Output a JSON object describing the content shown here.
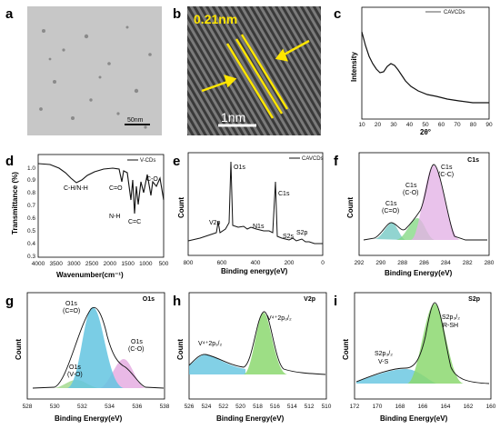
{
  "panels": {
    "a": {
      "letter": "a",
      "scale_bar": "50nm"
    },
    "b": {
      "letter": "b",
      "lattice": "0.21nm",
      "scale_bar": "1nm"
    },
    "c": {
      "letter": "c",
      "legend": "CAVCDs",
      "ylabel": "Intensity",
      "xlabel": "2θ°",
      "xticks": [
        "10",
        "20",
        "30",
        "40",
        "50",
        "60",
        "70",
        "80",
        "90"
      ]
    },
    "d": {
      "letter": "d",
      "legend": "V-CDs",
      "ylabel": "Transmittance (%)",
      "xlabel": "Wavenumber(cm⁻¹)",
      "xticks": [
        "4000",
        "3500",
        "3000",
        "2500",
        "2000",
        "1500",
        "1000",
        "500"
      ],
      "yticks": [
        "1.0",
        "0.9",
        "0.8",
        "0.7",
        "0.6",
        "0.5",
        "0.4",
        "0.3"
      ],
      "annotations": [
        "C-H/N-H",
        "C=O",
        "N-H",
        "C=C",
        "C-O"
      ]
    },
    "e": {
      "letter": "e",
      "legend": "CAVCDs",
      "ylabel": "Count",
      "xlabel": "Binding energy(eV)",
      "xticks": [
        "800",
        "600",
        "400",
        "200",
        "0"
      ],
      "annotations": [
        "O1s",
        "V2p",
        "N1s",
        "C1s",
        "S2s",
        "S2p"
      ]
    },
    "f": {
      "letter": "f",
      "title": "C1s",
      "ylabel": "Count",
      "xlabel": "Binding Energy(eV)",
      "xticks": [
        "292",
        "290",
        "288",
        "286",
        "284",
        "282",
        "280"
      ],
      "peaks": [
        {
          "l1": "C1s",
          "l2": "(C=O)"
        },
        {
          "l1": "C1s",
          "l2": "(C-O)"
        },
        {
          "l1": "C1s",
          "l2": "(C-C)"
        }
      ]
    },
    "g": {
      "letter": "g",
      "title": "O1s",
      "ylabel": "Count",
      "xlabel": "Binding Energy(eV)",
      "xticks": [
        "528",
        "530",
        "532",
        "534",
        "536",
        "538"
      ],
      "peaks": [
        {
          "l1": "O1s",
          "l2": "(C=O)"
        },
        {
          "l1": "O1s",
          "l2": "(V-O)"
        },
        {
          "l1": "O1s",
          "l2": "(C-O)"
        }
      ]
    },
    "h": {
      "letter": "h",
      "title": "V2p",
      "ylabel": "Count",
      "xlabel": "Binding Energy(eV)",
      "xticks": [
        "526",
        "524",
        "522",
        "520",
        "518",
        "516",
        "514",
        "512",
        "510"
      ],
      "peaks": [
        {
          "l1": "V⁴⁺2p₁/₂"
        },
        {
          "l1": "V⁴⁺2p₃/₂"
        }
      ]
    },
    "i": {
      "letter": "i",
      "title": "S2p",
      "ylabel": "Count",
      "xlabel": "Binding Energy(eV)",
      "xticks": [
        "172",
        "170",
        "168",
        "166",
        "164",
        "162",
        "160"
      ],
      "peaks": [
        {
          "l1": "S2p₃/₂",
          "l2": "V-S"
        },
        {
          "l1": "S2p₃/₂",
          "l2": "R-SH"
        }
      ]
    }
  }
}
